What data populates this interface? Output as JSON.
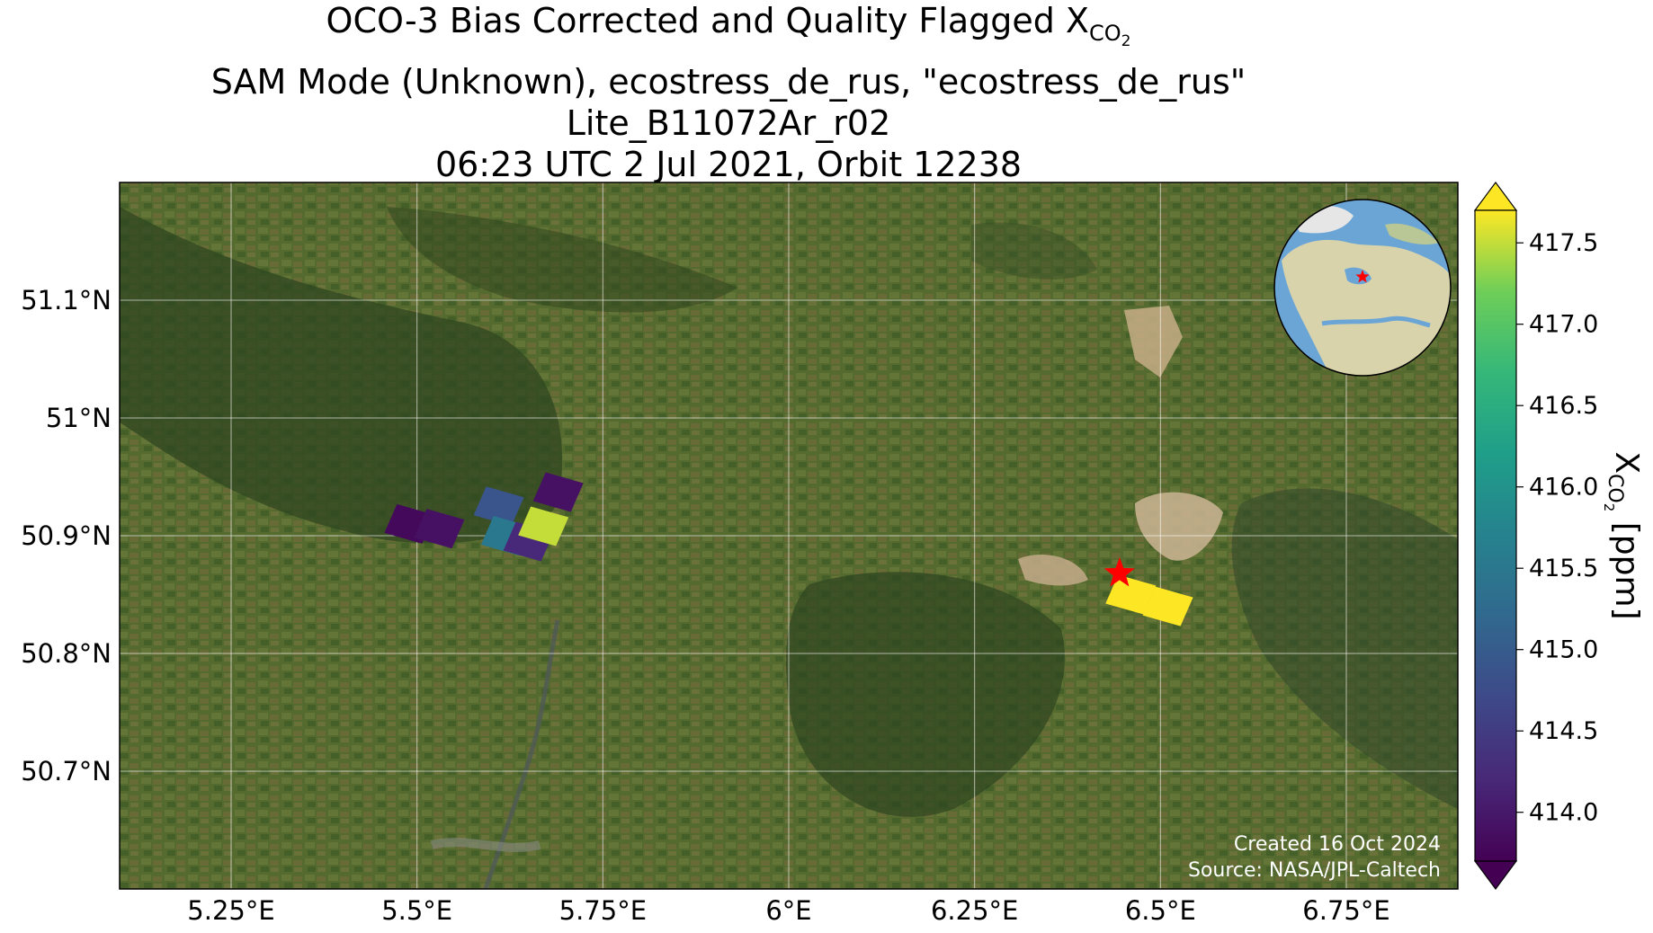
{
  "title": {
    "line1_prefix": "OCO-3 Bias Corrected and Quality Flagged X",
    "line1_sub": "CO",
    "line1_subsub": "2",
    "line2": "SAM Mode (Unknown), ecostress_de_rus, \"ecostress_de_rus\"",
    "line3": "Lite_B11072Ar_r02",
    "line4": "06:23 UTC 2 Jul 2021, Orbit 12238"
  },
  "map": {
    "lon_range": [
      5.1,
      6.9
    ],
    "lat_range": [
      50.6,
      51.2
    ],
    "lon_ticks": [
      {
        "value": 5.25,
        "label": "5.25°E"
      },
      {
        "value": 5.5,
        "label": "5.5°E"
      },
      {
        "value": 5.75,
        "label": "5.75°E"
      },
      {
        "value": 6.0,
        "label": "6°E"
      },
      {
        "value": 6.25,
        "label": "6.25°E"
      },
      {
        "value": 6.5,
        "label": "6.5°E"
      },
      {
        "value": 6.75,
        "label": "6.75°E"
      }
    ],
    "lat_ticks": [
      {
        "value": 51.1,
        "label": "51.1°N"
      },
      {
        "value": 51.0,
        "label": "51°N"
      },
      {
        "value": 50.9,
        "label": "50.9°N"
      },
      {
        "value": 50.8,
        "label": "50.8°N"
      },
      {
        "value": 50.7,
        "label": "50.7°N"
      }
    ],
    "gridlines": true,
    "target": {
      "lon": 6.445,
      "lat": 50.868,
      "marker": "red-star"
    },
    "soundings": [
      {
        "lon": 5.49,
        "lat": 50.91,
        "xco2": 413.8
      },
      {
        "lon": 5.53,
        "lat": 50.906,
        "xco2": 413.9
      },
      {
        "lon": 5.61,
        "lat": 50.925,
        "xco2": 414.9
      },
      {
        "lon": 5.62,
        "lat": 50.9,
        "xco2": 415.5
      },
      {
        "lon": 5.65,
        "lat": 50.895,
        "xco2": 414.2
      },
      {
        "lon": 5.69,
        "lat": 50.937,
        "xco2": 413.9
      },
      {
        "lon": 5.67,
        "lat": 50.908,
        "xco2": 417.5
      },
      {
        "lon": 6.46,
        "lat": 50.85,
        "xco2": 417.7
      },
      {
        "lon": 6.51,
        "lat": 50.84,
        "xco2": 417.7
      }
    ],
    "colors": {
      "water": "#6aa5d6",
      "land": "#d9d3ac",
      "background": "#4c5a2c",
      "target": "#ff0000"
    }
  },
  "colorbar": {
    "label_prefix": "X",
    "label_sub": "CO",
    "label_subsub": "2",
    "label_suffix": " [ppm]",
    "range": [
      413.7,
      417.7
    ],
    "colormap": "viridis",
    "extend": "both",
    "ticks": [
      {
        "value": 414.0,
        "label": "414.0"
      },
      {
        "value": 414.5,
        "label": "414.5"
      },
      {
        "value": 415.0,
        "label": "415.0"
      },
      {
        "value": 415.5,
        "label": "415.5"
      },
      {
        "value": 416.0,
        "label": "416.0"
      },
      {
        "value": 416.5,
        "label": "416.5"
      },
      {
        "value": 417.0,
        "label": "417.0"
      },
      {
        "value": 417.5,
        "label": "417.5"
      }
    ]
  },
  "credits": {
    "created": "Created 16 Oct 2024",
    "source": "Source: NASA/JPL-Caltech"
  }
}
